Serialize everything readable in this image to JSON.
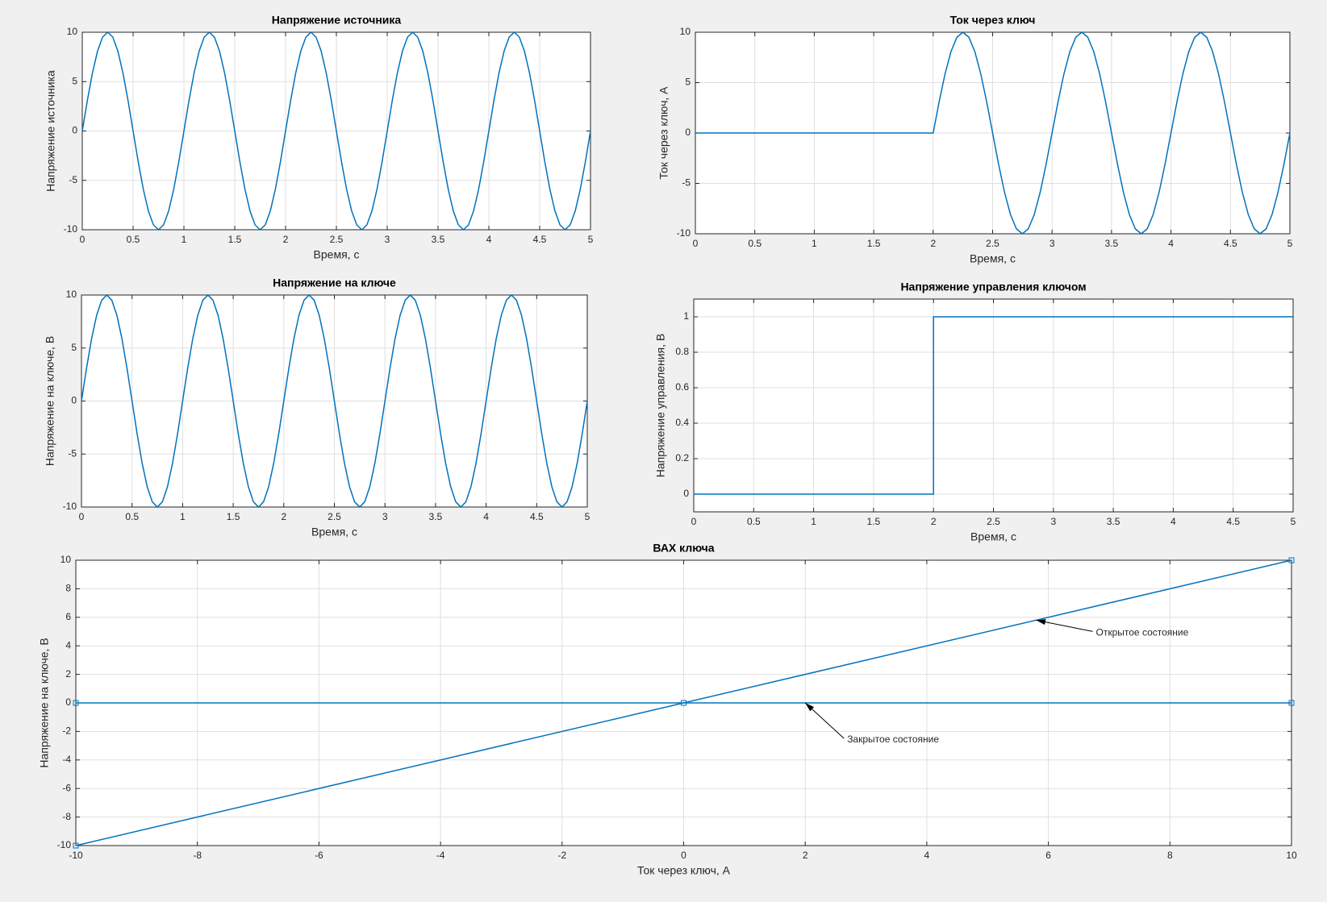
{
  "chart_data": [
    {
      "type": "line",
      "title": "Напряжение источника",
      "xlabel": "Время, с",
      "ylabel": "Напряжение источника",
      "grid": true,
      "xlim": [
        0,
        5
      ],
      "xticks": [
        0,
        0.5,
        1,
        1.5,
        2,
        2.5,
        3,
        3.5,
        4,
        4.5,
        5
      ],
      "ylim": [
        -10,
        10
      ],
      "yticks": [
        -10,
        -5,
        0,
        5,
        10
      ],
      "x": [
        0,
        0.05,
        0.1,
        0.15,
        0.2,
        0.25,
        0.3,
        0.35,
        0.4,
        0.45,
        0.5,
        0.55,
        0.6,
        0.65,
        0.7,
        0.75,
        0.8,
        0.85,
        0.9,
        0.95,
        1,
        1.05,
        1.1,
        1.15,
        1.2,
        1.25,
        1.3,
        1.35,
        1.4,
        1.45,
        1.5,
        1.55,
        1.6,
        1.65,
        1.7,
        1.75,
        1.8,
        1.85,
        1.9,
        1.95,
        2,
        2.05,
        2.1,
        2.15,
        2.2,
        2.25,
        2.3,
        2.35,
        2.4,
        2.45,
        2.5,
        2.55,
        2.6,
        2.65,
        2.7,
        2.75,
        2.8,
        2.85,
        2.9,
        2.95,
        3,
        3.05,
        3.1,
        3.15,
        3.2,
        3.25,
        3.3,
        3.35,
        3.4,
        3.45,
        3.5,
        3.55,
        3.6,
        3.65,
        3.7,
        3.75,
        3.8,
        3.85,
        3.9,
        3.95,
        4,
        4.05,
        4.1,
        4.15,
        4.2,
        4.25,
        4.3,
        4.35,
        4.4,
        4.45,
        4.5,
        4.55,
        4.6,
        4.65,
        4.7,
        4.75,
        4.8,
        4.85,
        4.9,
        4.95,
        5
      ],
      "series": [
        {
          "color": "#0072bd",
          "values": [
            0,
            3.09,
            5.88,
            8.09,
            9.51,
            10,
            9.51,
            8.09,
            5.88,
            3.09,
            0,
            -3.09,
            -5.88,
            -8.09,
            -9.51,
            -10,
            -9.51,
            -8.09,
            -5.88,
            -3.09,
            0,
            3.09,
            5.88,
            8.09,
            9.51,
            10,
            9.51,
            8.09,
            5.88,
            3.09,
            0,
            -3.09,
            -5.88,
            -8.09,
            -9.51,
            -10,
            -9.51,
            -8.09,
            -5.88,
            -3.09,
            0,
            3.09,
            5.88,
            8.09,
            9.51,
            10,
            9.51,
            8.09,
            5.88,
            3.09,
            0,
            -3.09,
            -5.88,
            -8.09,
            -9.51,
            -10,
            -9.51,
            -8.09,
            -5.88,
            -3.09,
            0,
            3.09,
            5.88,
            8.09,
            9.51,
            10,
            9.51,
            8.09,
            5.88,
            3.09,
            0,
            -3.09,
            -5.88,
            -8.09,
            -9.51,
            -10,
            -9.51,
            -8.09,
            -5.88,
            -3.09,
            0,
            3.09,
            5.88,
            8.09,
            9.51,
            10,
            9.51,
            8.09,
            5.88,
            3.09,
            0,
            -3.09,
            -5.88,
            -8.09,
            -9.51,
            -10,
            -9.51,
            -8.09,
            -5.88,
            -3.09,
            0
          ]
        }
      ]
    },
    {
      "type": "line",
      "title": "Ток через ключ",
      "xlabel": "Время, с",
      "ylabel": "Ток через ключ, А",
      "grid": true,
      "xlim": [
        0,
        5
      ],
      "xticks": [
        0,
        0.5,
        1,
        1.5,
        2,
        2.5,
        3,
        3.5,
        4,
        4.5,
        5
      ],
      "ylim": [
        -10,
        10
      ],
      "yticks": [
        -10,
        -5,
        0,
        5,
        10
      ],
      "x": [
        0,
        0.05,
        0.1,
        0.15,
        0.2,
        0.25,
        0.3,
        0.35,
        0.4,
        0.45,
        0.5,
        0.55,
        0.6,
        0.65,
        0.7,
        0.75,
        0.8,
        0.85,
        0.9,
        0.95,
        1,
        1.05,
        1.1,
        1.15,
        1.2,
        1.25,
        1.3,
        1.35,
        1.4,
        1.45,
        1.5,
        1.55,
        1.6,
        1.65,
        1.7,
        1.75,
        1.8,
        1.85,
        1.9,
        1.95,
        2,
        2.05,
        2.1,
        2.15,
        2.2,
        2.25,
        2.3,
        2.35,
        2.4,
        2.45,
        2.5,
        2.55,
        2.6,
        2.65,
        2.7,
        2.75,
        2.8,
        2.85,
        2.9,
        2.95,
        3,
        3.05,
        3.1,
        3.15,
        3.2,
        3.25,
        3.3,
        3.35,
        3.4,
        3.45,
        3.5,
        3.55,
        3.6,
        3.65,
        3.7,
        3.75,
        3.8,
        3.85,
        3.9,
        3.95,
        4,
        4.05,
        4.1,
        4.15,
        4.2,
        4.25,
        4.3,
        4.35,
        4.4,
        4.45,
        4.5,
        4.55,
        4.6,
        4.65,
        4.7,
        4.75,
        4.8,
        4.85,
        4.9,
        4.95,
        5
      ],
      "series": [
        {
          "color": "#0072bd",
          "values": [
            0,
            0,
            0,
            0,
            0,
            0,
            0,
            0,
            0,
            0,
            0,
            0,
            0,
            0,
            0,
            0,
            0,
            0,
            0,
            0,
            0,
            0,
            0,
            0,
            0,
            0,
            0,
            0,
            0,
            0,
            0,
            0,
            0,
            0,
            0,
            0,
            0,
            0,
            0,
            0,
            0,
            3.09,
            5.88,
            8.09,
            9.51,
            10,
            9.51,
            8.09,
            5.88,
            3.09,
            0,
            -3.09,
            -5.88,
            -8.09,
            -9.51,
            -10,
            -9.51,
            -8.09,
            -5.88,
            -3.09,
            0,
            3.09,
            5.88,
            8.09,
            9.51,
            10,
            9.51,
            8.09,
            5.88,
            3.09,
            0,
            -3.09,
            -5.88,
            -8.09,
            -9.51,
            -10,
            -9.51,
            -8.09,
            -5.88,
            -3.09,
            0,
            3.09,
            5.88,
            8.09,
            9.51,
            10,
            9.51,
            8.09,
            5.88,
            3.09,
            0,
            -3.09,
            -5.88,
            -8.09,
            -9.51,
            -10,
            -9.51,
            -8.09,
            -5.88,
            -3.09,
            0
          ]
        }
      ]
    },
    {
      "type": "line",
      "title": "Напряжение на ключе",
      "xlabel": "Время, с",
      "ylabel": "Напряжение на ключе, В",
      "grid": true,
      "xlim": [
        0,
        5
      ],
      "xticks": [
        0,
        0.5,
        1,
        1.5,
        2,
        2.5,
        3,
        3.5,
        4,
        4.5,
        5
      ],
      "ylim": [
        -10,
        10
      ],
      "yticks": [
        -10,
        -5,
        0,
        5,
        10
      ],
      "x": [
        0,
        0.05,
        0.1,
        0.15,
        0.2,
        0.25,
        0.3,
        0.35,
        0.4,
        0.45,
        0.5,
        0.55,
        0.6,
        0.65,
        0.7,
        0.75,
        0.8,
        0.85,
        0.9,
        0.95,
        1,
        1.05,
        1.1,
        1.15,
        1.2,
        1.25,
        1.3,
        1.35,
        1.4,
        1.45,
        1.5,
        1.55,
        1.6,
        1.65,
        1.7,
        1.75,
        1.8,
        1.85,
        1.9,
        1.95,
        2,
        2.05,
        2.1,
        2.15,
        2.2,
        2.25,
        2.3,
        2.35,
        2.4,
        2.45,
        2.5,
        2.55,
        2.6,
        2.65,
        2.7,
        2.75,
        2.8,
        2.85,
        2.9,
        2.95,
        3,
        3.05,
        3.1,
        3.15,
        3.2,
        3.25,
        3.3,
        3.35,
        3.4,
        3.45,
        3.5,
        3.55,
        3.6,
        3.65,
        3.7,
        3.75,
        3.8,
        3.85,
        3.9,
        3.95,
        4,
        4.05,
        4.1,
        4.15,
        4.2,
        4.25,
        4.3,
        4.35,
        4.4,
        4.45,
        4.5,
        4.55,
        4.6,
        4.65,
        4.7,
        4.75,
        4.8,
        4.85,
        4.9,
        4.95,
        5
      ],
      "series": [
        {
          "color": "#0072bd",
          "values": [
            0,
            3.09,
            5.88,
            8.09,
            9.51,
            10,
            9.51,
            8.09,
            5.88,
            3.09,
            0,
            -3.09,
            -5.88,
            -8.09,
            -9.51,
            -10,
            -9.51,
            -8.09,
            -5.88,
            -3.09,
            0,
            3.09,
            5.88,
            8.09,
            9.51,
            10,
            9.51,
            8.09,
            5.88,
            3.09,
            0,
            -3.09,
            -5.88,
            -8.09,
            -9.51,
            -10,
            -9.51,
            -8.09,
            -5.88,
            -3.09,
            0,
            3.09,
            5.88,
            8.09,
            9.51,
            10,
            9.51,
            8.09,
            5.88,
            3.09,
            0,
            -3.09,
            -5.88,
            -8.09,
            -9.51,
            -10,
            -9.51,
            -8.09,
            -5.88,
            -3.09,
            0,
            3.09,
            5.88,
            8.09,
            9.51,
            10,
            9.51,
            8.09,
            5.88,
            3.09,
            0,
            -3.09,
            -5.88,
            -8.09,
            -9.51,
            -10,
            -9.51,
            -8.09,
            -5.88,
            -3.09,
            0,
            3.09,
            5.88,
            8.09,
            9.51,
            10,
            9.51,
            8.09,
            5.88,
            3.09,
            0,
            -3.09,
            -5.88,
            -8.09,
            -9.51,
            -10,
            -9.51,
            -8.09,
            -5.88,
            -3.09,
            0
          ]
        }
      ]
    },
    {
      "type": "line",
      "title": "Напряжение управления ключом",
      "xlabel": "Время, с",
      "ylabel": "Напряжение управления, В",
      "grid": true,
      "xlim": [
        0,
        5
      ],
      "xticks": [
        0,
        0.5,
        1,
        1.5,
        2,
        2.5,
        3,
        3.5,
        4,
        4.5,
        5
      ],
      "ylim": [
        -0.1,
        1.1
      ],
      "yticks": [
        0,
        0.2,
        0.4,
        0.6,
        0.8,
        1
      ],
      "x": [
        0,
        2,
        2,
        5
      ],
      "series": [
        {
          "color": "#0072bd",
          "values": [
            0,
            0,
            1,
            1
          ]
        }
      ]
    },
    {
      "type": "line",
      "title": "ВАХ ключа",
      "xlabel": "Ток через ключ, А",
      "ylabel": "Напряжение на ключе, В",
      "grid": true,
      "xlim": [
        -10,
        10
      ],
      "xticks": [
        -10,
        -8,
        -6,
        -4,
        -2,
        0,
        2,
        4,
        6,
        8,
        10
      ],
      "ylim": [
        -10,
        10
      ],
      "yticks": [
        -10,
        -8,
        -6,
        -4,
        -2,
        0,
        2,
        4,
        6,
        8,
        10
      ],
      "series": [
        {
          "color": "#0072bd",
          "marker": "square",
          "x": [
            -10,
            0,
            10
          ],
          "values": [
            -10,
            0,
            10
          ]
        },
        {
          "color": "#0072bd",
          "marker": "square",
          "x": [
            -10,
            0,
            10
          ],
          "values": [
            0,
            0,
            0
          ]
        }
      ],
      "annotations": [
        {
          "text": "Открытое состояние",
          "x": 5.8,
          "y": 5.8
        },
        {
          "text": "Закрытое состояние",
          "x": 2,
          "y": 0
        }
      ]
    }
  ]
}
